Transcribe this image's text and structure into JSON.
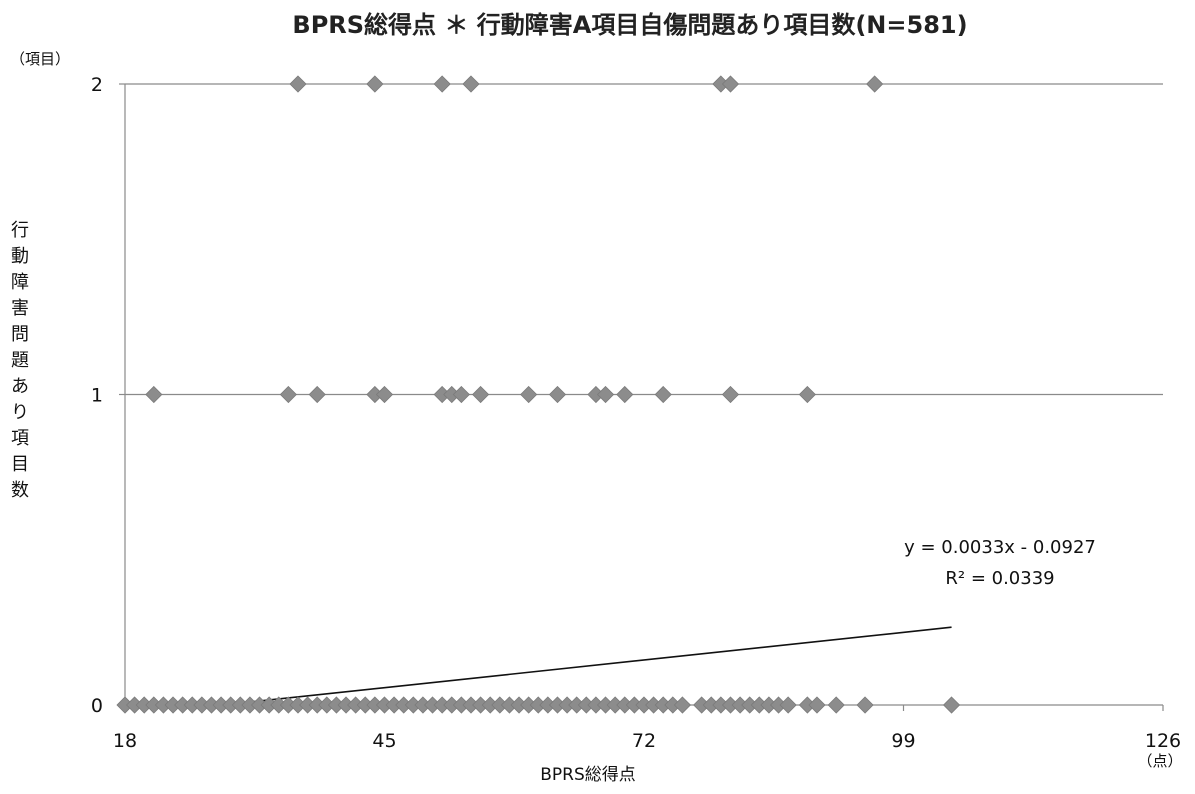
{
  "chart_data": {
    "type": "scatter",
    "title": "BPRS総得点 ＊ 行動障害A項目自傷問題あり項目数(N=581)",
    "xlabel": "BPRS総得点",
    "ylabel": "行動障害問題あり項目数",
    "x_unit": "（点）",
    "y_unit": "（項目）",
    "xlim": [
      18,
      126
    ],
    "ylim": [
      0,
      2
    ],
    "x_ticks": [
      "18",
      "45",
      "72",
      "99",
      "126"
    ],
    "y_ticks": [
      "0",
      "1",
      "2"
    ],
    "grid": "horizontal",
    "marker": "diamond",
    "marker_color": "#8c8c8c",
    "series": [
      {
        "points": [
          [
            18,
            0
          ],
          [
            19,
            0
          ],
          [
            20,
            0
          ],
          [
            21,
            0
          ],
          [
            22,
            0
          ],
          [
            23,
            0
          ],
          [
            24,
            0
          ],
          [
            25,
            0
          ],
          [
            26,
            0
          ],
          [
            27,
            0
          ],
          [
            28,
            0
          ],
          [
            29,
            0
          ],
          [
            30,
            0
          ],
          [
            31,
            0
          ],
          [
            32,
            0
          ],
          [
            33,
            0
          ],
          [
            34,
            0
          ],
          [
            35,
            0
          ],
          [
            36,
            0
          ],
          [
            37,
            0
          ],
          [
            38,
            0
          ],
          [
            39,
            0
          ],
          [
            40,
            0
          ],
          [
            41,
            0
          ],
          [
            42,
            0
          ],
          [
            43,
            0
          ],
          [
            44,
            0
          ],
          [
            45,
            0
          ],
          [
            46,
            0
          ],
          [
            47,
            0
          ],
          [
            48,
            0
          ],
          [
            49,
            0
          ],
          [
            50,
            0
          ],
          [
            51,
            0
          ],
          [
            52,
            0
          ],
          [
            53,
            0
          ],
          [
            54,
            0
          ],
          [
            55,
            0
          ],
          [
            56,
            0
          ],
          [
            57,
            0
          ],
          [
            58,
            0
          ],
          [
            59,
            0
          ],
          [
            60,
            0
          ],
          [
            61,
            0
          ],
          [
            62,
            0
          ],
          [
            63,
            0
          ],
          [
            64,
            0
          ],
          [
            65,
            0
          ],
          [
            66,
            0
          ],
          [
            67,
            0
          ],
          [
            68,
            0
          ],
          [
            69,
            0
          ],
          [
            70,
            0
          ],
          [
            71,
            0
          ],
          [
            72,
            0
          ],
          [
            73,
            0
          ],
          [
            74,
            0
          ],
          [
            75,
            0
          ],
          [
            76,
            0
          ],
          [
            78,
            0
          ],
          [
            79,
            0
          ],
          [
            80,
            0
          ],
          [
            81,
            0
          ],
          [
            82,
            0
          ],
          [
            83,
            0
          ],
          [
            84,
            0
          ],
          [
            85,
            0
          ],
          [
            86,
            0
          ],
          [
            87,
            0
          ],
          [
            89,
            0
          ],
          [
            90,
            0
          ],
          [
            92,
            0
          ],
          [
            95,
            0
          ],
          [
            104,
            0
          ],
          [
            21,
            1
          ],
          [
            35,
            1
          ],
          [
            38,
            1
          ],
          [
            44,
            1
          ],
          [
            45,
            1
          ],
          [
            51,
            1
          ],
          [
            52,
            1
          ],
          [
            53,
            1
          ],
          [
            55,
            1
          ],
          [
            60,
            1
          ],
          [
            63,
            1
          ],
          [
            67,
            1
          ],
          [
            68,
            1
          ],
          [
            70,
            1
          ],
          [
            74,
            1
          ],
          [
            81,
            1
          ],
          [
            89,
            1
          ],
          [
            36,
            2
          ],
          [
            44,
            2
          ],
          [
            51,
            2
          ],
          [
            54,
            2
          ],
          [
            80,
            2
          ],
          [
            81,
            2
          ],
          [
            96,
            2
          ]
        ]
      }
    ],
    "trendline": {
      "x_start": 28,
      "x_end": 104,
      "slope": 0.0033,
      "intercept": -0.0927,
      "equation": "y = 0.0033x - 0.0927",
      "r2": "R² = 0.0339"
    }
  }
}
